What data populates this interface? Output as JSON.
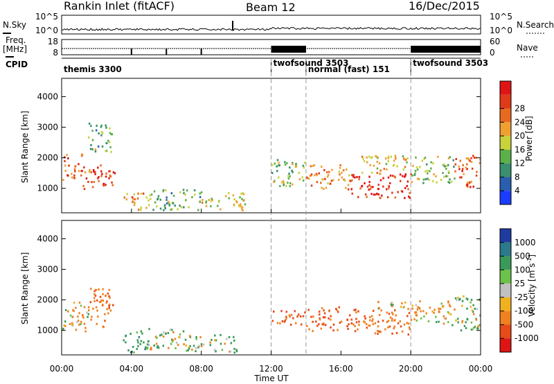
{
  "header": {
    "title": "Rankin Inlet (fitACF)",
    "beam": "Beam 12",
    "date": "16/Dec/2015"
  },
  "strip_labels": {
    "nsky": "N.Sky",
    "nsky_ticks": [
      "10^5",
      "10^0"
    ],
    "nsearch": "N.Search",
    "nsearch_ticks": [
      "10^5",
      "10^0"
    ],
    "freq_line1": "Freq.",
    "freq_line2": "[MHz]",
    "freq_ticks": [
      "18",
      "8"
    ],
    "nave": "Nave",
    "nave_ticks": [
      "60",
      "0"
    ],
    "cpid": "CPID"
  },
  "cpid_segments": [
    {
      "label": "themis 3300",
      "start_h": 0,
      "end_h": 12
    },
    {
      "label": "twofsound 3503",
      "start_h": 12,
      "end_h": 14
    },
    {
      "label": "normal (fast) 151",
      "start_h": 14,
      "end_h": 20
    },
    {
      "label": "twofsound 3503",
      "start_h": 20,
      "end_h": 24
    }
  ],
  "chart_data": [
    {
      "type": "heatmap",
      "quantity": "Power [dB]",
      "ylabel": "Slant Range [km]",
      "xlabel": "Time UT",
      "xlim_hours": [
        0,
        24
      ],
      "ylim": [
        200,
        4600
      ],
      "yticks": [
        1000,
        2000,
        3000,
        4000
      ],
      "colorbar_label": "Power [dB]",
      "colorbar_ticks": [
        "4",
        "8",
        "12",
        "16",
        "20",
        "24",
        "28"
      ],
      "colorbar_colors": [
        "#1a3cff",
        "#2a5eb0",
        "#3a8f6e",
        "#5cb04a",
        "#c8d23a",
        "#f0a030",
        "#e86a20",
        "#e03a1a",
        "#e01414"
      ],
      "scatter_regions": [
        {
          "t0": 0.0,
          "t1": 1.2,
          "r0": 1300,
          "r1": 2200,
          "value": 24
        },
        {
          "t0": 1.2,
          "t1": 2.5,
          "r0": 1000,
          "r1": 1800,
          "value": 26
        },
        {
          "t0": 1.5,
          "t1": 2.9,
          "r0": 2200,
          "r1": 3200,
          "value": 12
        },
        {
          "t0": 2.3,
          "t1": 3.2,
          "r0": 1100,
          "r1": 1700,
          "value": 28
        },
        {
          "t0": 3.5,
          "t1": 5.0,
          "r0": 300,
          "r1": 900,
          "value": 20
        },
        {
          "t0": 5.0,
          "t1": 8.0,
          "r0": 300,
          "r1": 1000,
          "value": 12
        },
        {
          "t0": 8.0,
          "t1": 10.5,
          "r0": 300,
          "r1": 900,
          "value": 16
        },
        {
          "t0": 12.0,
          "t1": 14.0,
          "r0": 1100,
          "r1": 2000,
          "value": 14
        },
        {
          "t0": 14.0,
          "t1": 16.5,
          "r0": 1000,
          "r1": 1800,
          "value": 22
        },
        {
          "t0": 16.5,
          "t1": 20.0,
          "r0": 700,
          "r1": 1500,
          "value": 28
        },
        {
          "t0": 17.0,
          "t1": 20.0,
          "r0": 1500,
          "r1": 2100,
          "value": 18
        },
        {
          "t0": 20.0,
          "t1": 22.5,
          "r0": 1200,
          "r1": 2100,
          "value": 14
        },
        {
          "t0": 22.5,
          "t1": 24.0,
          "r0": 1000,
          "r1": 2100,
          "value": 24
        }
      ]
    },
    {
      "type": "heatmap",
      "quantity": "Velocity [m s^-1]",
      "ylabel": "Slant Range [km]",
      "xlabel": "Time UT",
      "xlim_hours": [
        0,
        24
      ],
      "ylim": [
        200,
        4600
      ],
      "yticks": [
        1000,
        2000,
        3000,
        4000
      ],
      "colorbar_label": "Velocity [m s",
      "colorbar_label_sup": "-1",
      "colorbar_label_end": "]",
      "colorbar_ticks": [
        "1000",
        "500",
        "100",
        "25",
        "-25",
        "-100",
        "-500",
        "-1000"
      ],
      "colorbar_colors": [
        "#1e3ca0",
        "#2a7a8a",
        "#3a9a5a",
        "#6cc24a",
        "#c0c0c0",
        "#f0b020",
        "#f08020",
        "#e84a18",
        "#e01414"
      ],
      "scatter_regions": [
        {
          "t0": 0.0,
          "t1": 1.5,
          "r0": 1000,
          "r1": 2000,
          "value": -150
        },
        {
          "t0": 1.5,
          "t1": 3.0,
          "r0": 1100,
          "r1": 2400,
          "value": -400
        },
        {
          "t0": 3.5,
          "t1": 5.0,
          "r0": 300,
          "r1": 1100,
          "value": 300
        },
        {
          "t0": 5.0,
          "t1": 7.0,
          "r0": 400,
          "r1": 1100,
          "value": 0
        },
        {
          "t0": 7.0,
          "t1": 10.0,
          "r0": 300,
          "r1": 900,
          "value": 80
        },
        {
          "t0": 12.0,
          "t1": 14.0,
          "r0": 1200,
          "r1": 1700,
          "value": -700
        },
        {
          "t0": 14.0,
          "t1": 17.0,
          "r0": 1000,
          "r1": 1800,
          "value": -600
        },
        {
          "t0": 17.0,
          "t1": 20.0,
          "r0": 900,
          "r1": 1700,
          "value": -400
        },
        {
          "t0": 18.0,
          "t1": 20.0,
          "r0": 1700,
          "r1": 2000,
          "value": 0
        },
        {
          "t0": 20.0,
          "t1": 22.5,
          "r0": 1200,
          "r1": 2000,
          "value": -150
        },
        {
          "t0": 22.5,
          "t1": 24.0,
          "r0": 1000,
          "r1": 2200,
          "value": 120
        }
      ]
    }
  ],
  "x_axis": {
    "ticks": [
      "00:00",
      "04:00",
      "08:00",
      "12:00",
      "16:00",
      "20:00",
      "00:00"
    ],
    "label": "Time UT"
  }
}
